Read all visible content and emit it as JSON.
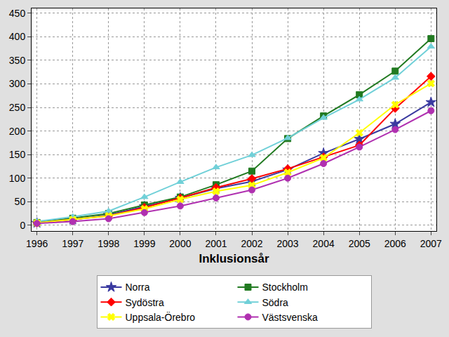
{
  "chart_data": {
    "type": "line",
    "x_label": "Inklusionsår",
    "x": [
      1996,
      1997,
      1998,
      1999,
      2000,
      2001,
      2002,
      2003,
      2004,
      2005,
      2006,
      2007
    ],
    "xlim": [
      1995.85,
      2007.15
    ],
    "xticks": [
      1996,
      1997,
      1998,
      1999,
      2000,
      2001,
      2002,
      2003,
      2004,
      2005,
      2006,
      2007
    ],
    "ylim": [
      -12,
      460
    ],
    "yticks": [
      0,
      50,
      100,
      150,
      200,
      250,
      300,
      350,
      400,
      450
    ],
    "grid": true,
    "legend": "bottom",
    "series": [
      {
        "name": "Norra",
        "color": "#3a3aa0",
        "marker": "star",
        "values": [
          5,
          12,
          22,
          40,
          58,
          78,
          93,
          118,
          153,
          183,
          215,
          261
        ]
      },
      {
        "name": "Stockholm",
        "color": "#217a21",
        "marker": "square",
        "values": [
          6,
          15,
          25,
          43,
          60,
          86,
          115,
          184,
          232,
          277,
          327,
          396
        ]
      },
      {
        "name": "Sydöstra",
        "color": "#ff0000",
        "marker": "diamond",
        "values": [
          5,
          12,
          20,
          38,
          58,
          80,
          99,
          120,
          145,
          170,
          248,
          316
        ]
      },
      {
        "name": "Södra",
        "color": "#70d0d8",
        "marker": "triangle-up",
        "values": [
          8,
          18,
          30,
          60,
          92,
          123,
          149,
          185,
          228,
          267,
          313,
          379
        ]
      },
      {
        "name": "Uppsala-Örebro",
        "color": "#ffff00",
        "marker": "x",
        "values": [
          5,
          12,
          20,
          35,
          55,
          72,
          85,
          112,
          143,
          196,
          256,
          301
        ]
      },
      {
        "name": "Västsvenska",
        "color": "#b030b0",
        "marker": "circle",
        "values": [
          4,
          8,
          14,
          27,
          41,
          58,
          75,
          100,
          131,
          166,
          203,
          243
        ]
      }
    ]
  }
}
